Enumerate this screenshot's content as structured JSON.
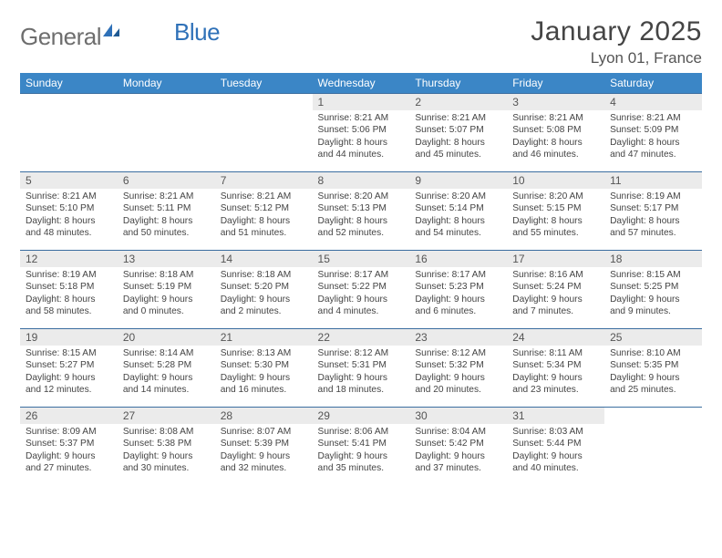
{
  "brand": {
    "part1": "General",
    "part2": "Blue"
  },
  "title": "January 2025",
  "location": "Lyon 01, France",
  "colors": {
    "header_bg": "#3b86c6",
    "header_text": "#ffffff",
    "row_divider": "#3b6ea0",
    "daynum_bg": "#ebebeb",
    "body_text": "#444444",
    "logo_gray": "#6e6e6e",
    "logo_blue": "#2f71b8"
  },
  "day_names": [
    "Sunday",
    "Monday",
    "Tuesday",
    "Wednesday",
    "Thursday",
    "Friday",
    "Saturday"
  ],
  "weeks": [
    [
      {
        "num": "",
        "lines": [
          "",
          "",
          "",
          ""
        ]
      },
      {
        "num": "",
        "lines": [
          "",
          "",
          "",
          ""
        ]
      },
      {
        "num": "",
        "lines": [
          "",
          "",
          "",
          ""
        ]
      },
      {
        "num": "1",
        "lines": [
          "Sunrise: 8:21 AM",
          "Sunset: 5:06 PM",
          "Daylight: 8 hours",
          "and 44 minutes."
        ]
      },
      {
        "num": "2",
        "lines": [
          "Sunrise: 8:21 AM",
          "Sunset: 5:07 PM",
          "Daylight: 8 hours",
          "and 45 minutes."
        ]
      },
      {
        "num": "3",
        "lines": [
          "Sunrise: 8:21 AM",
          "Sunset: 5:08 PM",
          "Daylight: 8 hours",
          "and 46 minutes."
        ]
      },
      {
        "num": "4",
        "lines": [
          "Sunrise: 8:21 AM",
          "Sunset: 5:09 PM",
          "Daylight: 8 hours",
          "and 47 minutes."
        ]
      }
    ],
    [
      {
        "num": "5",
        "lines": [
          "Sunrise: 8:21 AM",
          "Sunset: 5:10 PM",
          "Daylight: 8 hours",
          "and 48 minutes."
        ]
      },
      {
        "num": "6",
        "lines": [
          "Sunrise: 8:21 AM",
          "Sunset: 5:11 PM",
          "Daylight: 8 hours",
          "and 50 minutes."
        ]
      },
      {
        "num": "7",
        "lines": [
          "Sunrise: 8:21 AM",
          "Sunset: 5:12 PM",
          "Daylight: 8 hours",
          "and 51 minutes."
        ]
      },
      {
        "num": "8",
        "lines": [
          "Sunrise: 8:20 AM",
          "Sunset: 5:13 PM",
          "Daylight: 8 hours",
          "and 52 minutes."
        ]
      },
      {
        "num": "9",
        "lines": [
          "Sunrise: 8:20 AM",
          "Sunset: 5:14 PM",
          "Daylight: 8 hours",
          "and 54 minutes."
        ]
      },
      {
        "num": "10",
        "lines": [
          "Sunrise: 8:20 AM",
          "Sunset: 5:15 PM",
          "Daylight: 8 hours",
          "and 55 minutes."
        ]
      },
      {
        "num": "11",
        "lines": [
          "Sunrise: 8:19 AM",
          "Sunset: 5:17 PM",
          "Daylight: 8 hours",
          "and 57 minutes."
        ]
      }
    ],
    [
      {
        "num": "12",
        "lines": [
          "Sunrise: 8:19 AM",
          "Sunset: 5:18 PM",
          "Daylight: 8 hours",
          "and 58 minutes."
        ]
      },
      {
        "num": "13",
        "lines": [
          "Sunrise: 8:18 AM",
          "Sunset: 5:19 PM",
          "Daylight: 9 hours",
          "and 0 minutes."
        ]
      },
      {
        "num": "14",
        "lines": [
          "Sunrise: 8:18 AM",
          "Sunset: 5:20 PM",
          "Daylight: 9 hours",
          "and 2 minutes."
        ]
      },
      {
        "num": "15",
        "lines": [
          "Sunrise: 8:17 AM",
          "Sunset: 5:22 PM",
          "Daylight: 9 hours",
          "and 4 minutes."
        ]
      },
      {
        "num": "16",
        "lines": [
          "Sunrise: 8:17 AM",
          "Sunset: 5:23 PM",
          "Daylight: 9 hours",
          "and 6 minutes."
        ]
      },
      {
        "num": "17",
        "lines": [
          "Sunrise: 8:16 AM",
          "Sunset: 5:24 PM",
          "Daylight: 9 hours",
          "and 7 minutes."
        ]
      },
      {
        "num": "18",
        "lines": [
          "Sunrise: 8:15 AM",
          "Sunset: 5:25 PM",
          "Daylight: 9 hours",
          "and 9 minutes."
        ]
      }
    ],
    [
      {
        "num": "19",
        "lines": [
          "Sunrise: 8:15 AM",
          "Sunset: 5:27 PM",
          "Daylight: 9 hours",
          "and 12 minutes."
        ]
      },
      {
        "num": "20",
        "lines": [
          "Sunrise: 8:14 AM",
          "Sunset: 5:28 PM",
          "Daylight: 9 hours",
          "and 14 minutes."
        ]
      },
      {
        "num": "21",
        "lines": [
          "Sunrise: 8:13 AM",
          "Sunset: 5:30 PM",
          "Daylight: 9 hours",
          "and 16 minutes."
        ]
      },
      {
        "num": "22",
        "lines": [
          "Sunrise: 8:12 AM",
          "Sunset: 5:31 PM",
          "Daylight: 9 hours",
          "and 18 minutes."
        ]
      },
      {
        "num": "23",
        "lines": [
          "Sunrise: 8:12 AM",
          "Sunset: 5:32 PM",
          "Daylight: 9 hours",
          "and 20 minutes."
        ]
      },
      {
        "num": "24",
        "lines": [
          "Sunrise: 8:11 AM",
          "Sunset: 5:34 PM",
          "Daylight: 9 hours",
          "and 23 minutes."
        ]
      },
      {
        "num": "25",
        "lines": [
          "Sunrise: 8:10 AM",
          "Sunset: 5:35 PM",
          "Daylight: 9 hours",
          "and 25 minutes."
        ]
      }
    ],
    [
      {
        "num": "26",
        "lines": [
          "Sunrise: 8:09 AM",
          "Sunset: 5:37 PM",
          "Daylight: 9 hours",
          "and 27 minutes."
        ]
      },
      {
        "num": "27",
        "lines": [
          "Sunrise: 8:08 AM",
          "Sunset: 5:38 PM",
          "Daylight: 9 hours",
          "and 30 minutes."
        ]
      },
      {
        "num": "28",
        "lines": [
          "Sunrise: 8:07 AM",
          "Sunset: 5:39 PM",
          "Daylight: 9 hours",
          "and 32 minutes."
        ]
      },
      {
        "num": "29",
        "lines": [
          "Sunrise: 8:06 AM",
          "Sunset: 5:41 PM",
          "Daylight: 9 hours",
          "and 35 minutes."
        ]
      },
      {
        "num": "30",
        "lines": [
          "Sunrise: 8:04 AM",
          "Sunset: 5:42 PM",
          "Daylight: 9 hours",
          "and 37 minutes."
        ]
      },
      {
        "num": "31",
        "lines": [
          "Sunrise: 8:03 AM",
          "Sunset: 5:44 PM",
          "Daylight: 9 hours",
          "and 40 minutes."
        ]
      },
      {
        "num": "",
        "lines": [
          "",
          "",
          "",
          ""
        ]
      }
    ]
  ]
}
